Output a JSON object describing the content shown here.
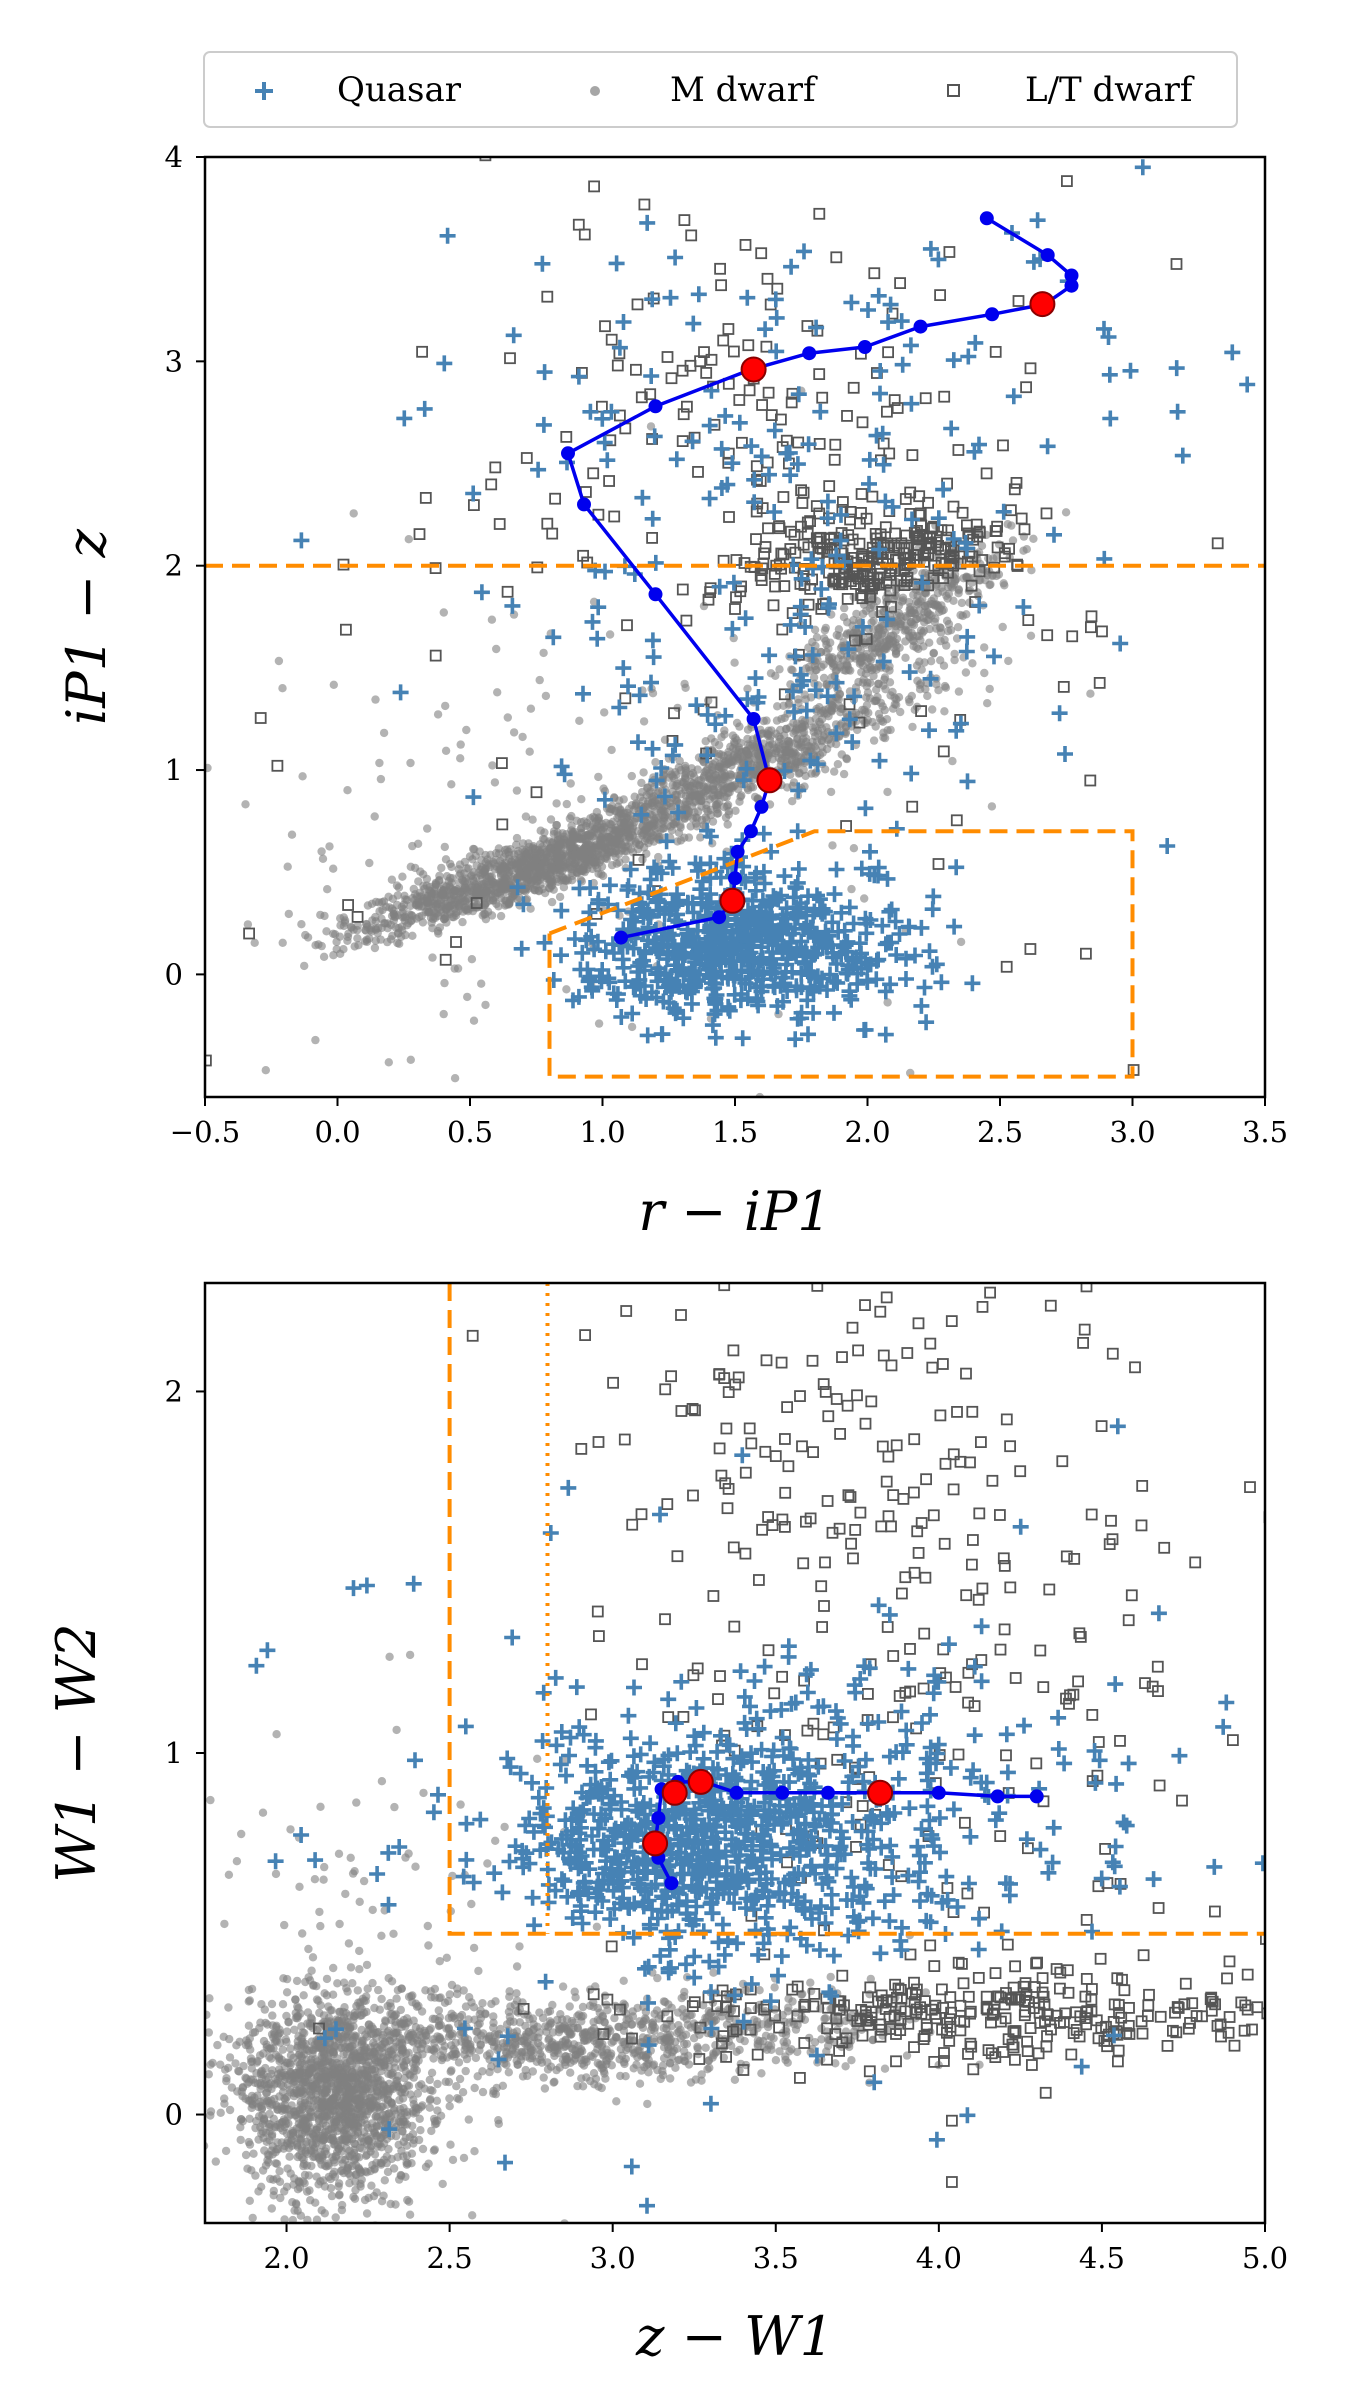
{
  "chart_data": [
    {
      "type": "scatter",
      "title": "",
      "xlabel": "r − iP1",
      "ylabel": "iP1 − z",
      "xlim": [
        -0.5,
        3.5
      ],
      "ylim": [
        -0.6,
        4.0
      ],
      "xticks": [
        -0.5,
        0.0,
        0.5,
        1.0,
        1.5,
        2.0,
        2.5,
        3.0,
        3.5
      ],
      "xtick_labels": [
        "−0.5",
        "0.0",
        "0.5",
        "1.0",
        "1.5",
        "2.0",
        "2.5",
        "3.0",
        "3.5"
      ],
      "yticks": [
        0,
        1,
        2,
        3,
        4
      ],
      "ytick_labels": [
        "0",
        "1",
        "2",
        "3",
        "4"
      ],
      "series": [
        {
          "name": "M dwarf",
          "marker": "dot",
          "color": "#808080",
          "clusters": [
            {
              "cx": 0.7,
              "cy": 0.5,
              "sx": 0.32,
              "sy": 0.16,
              "n": 1200,
              "corr": 0.9
            },
            {
              "cx": 1.5,
              "cy": 1.0,
              "sx": 0.35,
              "sy": 0.22,
              "n": 900,
              "corr": 0.9
            },
            {
              "cx": 2.1,
              "cy": 1.7,
              "sx": 0.22,
              "sy": 0.2,
              "n": 500,
              "corr": 0.8
            },
            {
              "cx": 0.7,
              "cy": 0.7,
              "sx": 0.8,
              "sy": 0.7,
              "n": 220,
              "corr": 0.2
            }
          ]
        },
        {
          "name": "Quasar",
          "marker": "plus",
          "color": "#4682b4",
          "clusters": [
            {
              "cx": 1.5,
              "cy": 0.15,
              "sx": 0.28,
              "sy": 0.17,
              "n": 650,
              "corr": 0.0
            },
            {
              "cx": 1.6,
              "cy": 1.4,
              "sx": 0.55,
              "sy": 0.8,
              "n": 140,
              "corr": 0.0
            },
            {
              "cx": 1.8,
              "cy": 2.8,
              "sx": 0.7,
              "sy": 0.55,
              "n": 120,
              "corr": 0.0
            }
          ]
        },
        {
          "name": "L/T dwarf",
          "marker": "open-square",
          "color": "#555555",
          "clusters": [
            {
              "cx": 2.05,
              "cy": 2.05,
              "sx": 0.23,
              "sy": 0.12,
              "n": 260,
              "corr": 0.4
            },
            {
              "cx": 1.6,
              "cy": 2.7,
              "sx": 0.45,
              "sy": 0.45,
              "n": 150,
              "corr": 0.0
            },
            {
              "cx": 1.5,
              "cy": 1.6,
              "sx": 1.3,
              "sy": 1.2,
              "n": 90,
              "corr": 0.0
            }
          ]
        }
      ],
      "track": {
        "color": "#0000ee",
        "points": [
          [
            2.45,
            3.7
          ],
          [
            2.68,
            3.52
          ],
          [
            2.77,
            3.42
          ],
          [
            2.77,
            3.37
          ],
          [
            2.67,
            3.28
          ],
          [
            2.47,
            3.23
          ],
          [
            2.2,
            3.17
          ],
          [
            1.99,
            3.07
          ],
          [
            1.78,
            3.04
          ],
          [
            1.56,
            2.96
          ],
          [
            1.2,
            2.78
          ],
          [
            0.87,
            2.55
          ],
          [
            0.93,
            2.3
          ],
          [
            1.2,
            1.86
          ],
          [
            1.57,
            1.25
          ],
          [
            1.63,
            0.95
          ],
          [
            1.6,
            0.82
          ],
          [
            1.56,
            0.7
          ],
          [
            1.51,
            0.6
          ],
          [
            1.5,
            0.47
          ],
          [
            1.49,
            0.36
          ],
          [
            1.44,
            0.28
          ],
          [
            1.07,
            0.18
          ]
        ],
        "highlighted": [
          [
            2.66,
            3.28
          ],
          [
            1.57,
            2.96
          ],
          [
            1.63,
            0.95
          ],
          [
            1.49,
            0.36
          ]
        ],
        "highlight_color": "#ff0000"
      },
      "cuts": {
        "color": "#ff8c00",
        "hline": 2.0,
        "box": [
          [
            0.8,
            0.2
          ],
          [
            1.8,
            0.7
          ],
          [
            3.0,
            0.7
          ],
          [
            3.0,
            -0.5
          ],
          [
            0.8,
            -0.5
          ],
          [
            0.8,
            0.2
          ]
        ]
      },
      "legend": {
        "placement": "top-center",
        "entries": [
          {
            "label": "Quasar",
            "marker": "plus"
          },
          {
            "label": "M dwarf",
            "marker": "dot"
          },
          {
            "label": "L/T dwarf",
            "marker": "open-square"
          }
        ]
      }
    },
    {
      "type": "scatter",
      "title": "",
      "xlabel": "z − W1",
      "ylabel": "W1 − W2",
      "xlim": [
        1.75,
        5.0
      ],
      "ylim": [
        -0.3,
        2.3
      ],
      "xticks": [
        2.0,
        2.5,
        3.0,
        3.5,
        4.0,
        4.5,
        5.0
      ],
      "xtick_labels": [
        "2.0",
        "2.5",
        "3.0",
        "3.5",
        "4.0",
        "4.5",
        "5.0"
      ],
      "yticks": [
        0,
        1,
        2
      ],
      "ytick_labels": [
        "0",
        "1",
        "2"
      ],
      "series": [
        {
          "name": "M dwarf",
          "marker": "dot",
          "color": "#808080",
          "clusters": [
            {
              "cx": 2.15,
              "cy": 0.05,
              "sx": 0.15,
              "sy": 0.14,
              "n": 1600,
              "corr": 0.0
            },
            {
              "cx": 2.8,
              "cy": 0.2,
              "sx": 0.35,
              "sy": 0.06,
              "n": 700,
              "corr": 0.0
            },
            {
              "cx": 3.4,
              "cy": 0.25,
              "sx": 0.3,
              "sy": 0.06,
              "n": 250,
              "corr": 0.0
            },
            {
              "cx": 2.3,
              "cy": 0.4,
              "sx": 0.35,
              "sy": 0.35,
              "n": 120,
              "corr": 0.0
            }
          ]
        },
        {
          "name": "Quasar",
          "marker": "plus",
          "color": "#4682b4",
          "clusters": [
            {
              "cx": 3.25,
              "cy": 0.75,
              "sx": 0.28,
              "sy": 0.14,
              "n": 650,
              "corr": 0.0
            },
            {
              "cx": 3.8,
              "cy": 0.85,
              "sx": 0.45,
              "sy": 0.2,
              "n": 220,
              "corr": 0.0
            },
            {
              "cx": 3.2,
              "cy": 0.8,
              "sx": 0.7,
              "sy": 0.4,
              "n": 120,
              "corr": 0.0
            }
          ]
        },
        {
          "name": "L/T dwarf",
          "marker": "open-square",
          "color": "#555555",
          "clusters": [
            {
              "cx": 4.2,
              "cy": 0.28,
              "sx": 0.5,
              "sy": 0.06,
              "n": 300,
              "corr": 0.0
            },
            {
              "cx": 4.0,
              "cy": 1.3,
              "sx": 0.5,
              "sy": 0.5,
              "n": 220,
              "corr": 0.0
            },
            {
              "cx": 3.6,
              "cy": 1.9,
              "sx": 0.35,
              "sy": 0.25,
              "n": 90,
              "corr": 0.0
            }
          ]
        }
      ],
      "track": {
        "color": "#0000ee",
        "points": [
          [
            3.18,
            0.64
          ],
          [
            3.14,
            0.71
          ],
          [
            3.13,
            0.75
          ],
          [
            3.14,
            0.82
          ],
          [
            3.15,
            0.9
          ],
          [
            3.2,
            0.92
          ],
          [
            3.25,
            0.92
          ],
          [
            3.28,
            0.92
          ],
          [
            3.38,
            0.89
          ],
          [
            3.52,
            0.89
          ],
          [
            3.66,
            0.89
          ],
          [
            3.82,
            0.89
          ],
          [
            4.0,
            0.89
          ],
          [
            4.18,
            0.88
          ],
          [
            4.3,
            0.88
          ]
        ],
        "highlighted": [
          [
            3.13,
            0.75
          ],
          [
            3.19,
            0.89
          ],
          [
            3.27,
            0.92
          ],
          [
            3.82,
            0.89
          ]
        ],
        "highlight_color": "#ff0000"
      },
      "cuts": {
        "color": "#ff8c00",
        "dashed": [
          [
            2.5,
            2.3
          ],
          [
            2.5,
            0.5
          ],
          [
            5.0,
            0.5
          ]
        ],
        "dotted": [
          [
            2.8,
            2.3
          ],
          [
            2.8,
            0.5
          ]
        ]
      }
    }
  ]
}
